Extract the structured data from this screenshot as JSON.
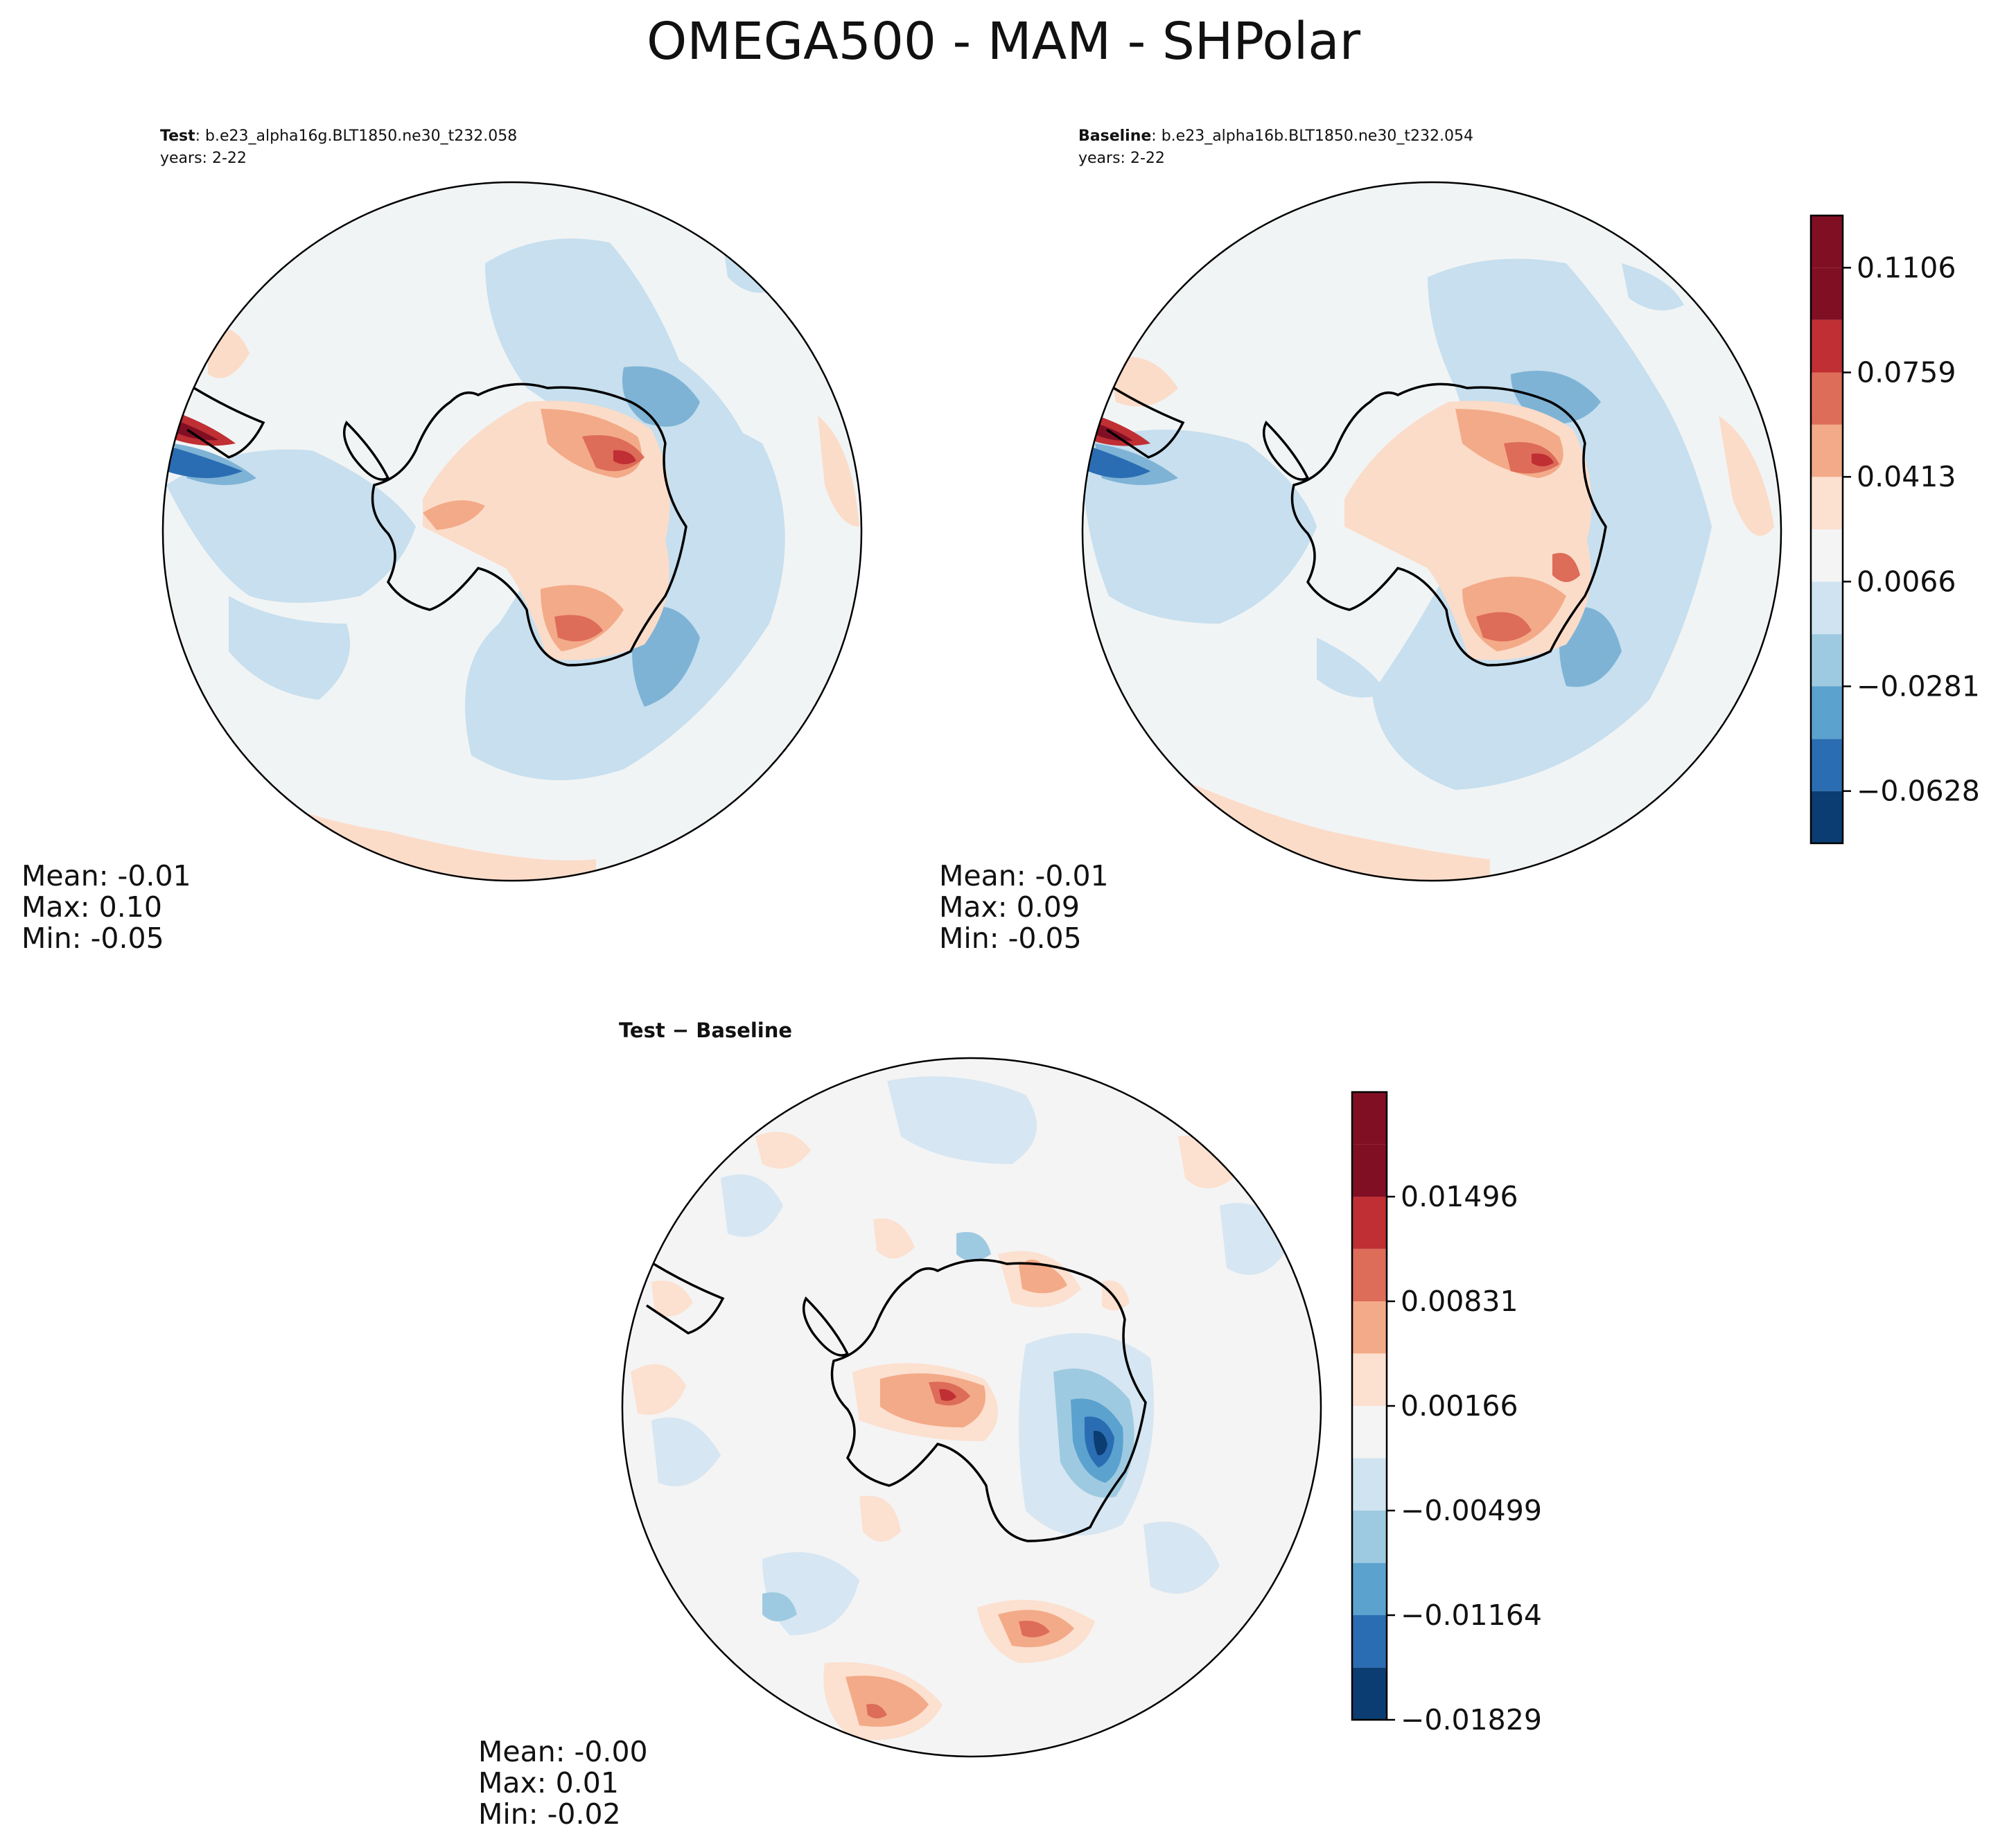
{
  "chart_data": {
    "type": "heatmap",
    "projection": "south-polar-stereographic",
    "title": "OMEGA500 - MAM - SHPolar",
    "panels": [
      {
        "key": "test",
        "label_bold": "Test",
        "label_rest": ": b.e23_alpha16g.BLT1850.ne30_t232.058",
        "years": "years: 2-22",
        "stats": {
          "mean": "Mean: -0.01",
          "max": "Max:  0.10",
          "min": "Min: -0.05"
        }
      },
      {
        "key": "baseline",
        "label_bold": "Baseline",
        "label_rest": ": b.e23_alpha16b.BLT1850.ne30_t232.054",
        "years": "years: 2-22",
        "stats": {
          "mean": "Mean: -0.01",
          "max": "Max:  0.09",
          "min": "Min: -0.05"
        }
      },
      {
        "key": "diff",
        "label_bold": "Test − Baseline",
        "stats": {
          "mean": "Mean: -0.00",
          "max": "Max:  0.01",
          "min": "Min: -0.02"
        }
      }
    ],
    "colorbar_main": {
      "range": [
        -0.0801,
        0.1279
      ],
      "levels": [
        -0.0801,
        -0.0628,
        -0.0455,
        -0.0281,
        -0.0108,
        0.0066,
        0.0239,
        0.0413,
        0.0586,
        0.0759,
        0.0933,
        0.1106,
        0.1279
      ],
      "tick_values": [
        -0.0628,
        -0.0281,
        0.0066,
        0.0413,
        0.0759,
        0.1106
      ],
      "tick_labels": [
        "−0.0628",
        "−0.0281",
        "0.0066",
        "0.0413",
        "0.0759",
        "0.1106"
      ]
    },
    "colorbar_diff": {
      "range": [
        -0.01829,
        0.02161
      ],
      "levels": [
        -0.01829,
        -0.01497,
        -0.01164,
        -0.00832,
        -0.00499,
        -0.00166,
        0.00166,
        0.00499,
        0.00831,
        0.01164,
        0.01496,
        0.01829,
        0.02161
      ],
      "tick_values": [
        -0.01829,
        -0.01164,
        -0.00499,
        0.00166,
        0.00831,
        0.01496
      ],
      "tick_labels": [
        "−0.01829",
        "−0.01164",
        "−0.00499",
        "0.00166",
        "0.00831",
        "0.01496"
      ]
    },
    "colormap": [
      "#0b3d72",
      "#2a6db2",
      "#5ba2cf",
      "#9ecae1",
      "#cfe3f0",
      "#f4f4f4",
      "#fce0d0",
      "#f3aa88",
      "#dd6c59",
      "#bf2f33",
      "#810f24"
    ]
  }
}
